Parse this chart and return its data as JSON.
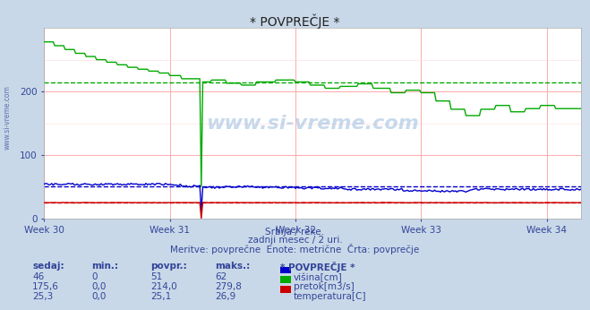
{
  "title": "* POVPREČJE *",
  "bg_color": "#c8d8e8",
  "plot_bg_color": "#ffffff",
  "subtitle_lines": [
    "Srbija / reke.",
    "zadnji mesec / 2 uri.",
    "Meritve: povprečne  Enote: metrične  Črta: povprečje"
  ],
  "xlabel_weeks": [
    "Week 30",
    "Week 31",
    "Week 32",
    "Week 33",
    "Week 34"
  ],
  "ylim": [
    0,
    300
  ],
  "yticks": [
    0,
    100,
    200
  ],
  "n_points": 360,
  "week_positions": [
    0,
    84,
    168,
    252,
    336
  ],
  "avg_green": 214.0,
  "avg_blue": 51,
  "avg_red": 25.1,
  "green_color": "#00aa00",
  "blue_color": "#0000cc",
  "red_color": "#cc0000",
  "watermark_text": "www.si-vreme.com",
  "legend_headers": [
    "sedaj:",
    "min.:",
    "povpr.:",
    "maks.:",
    "* POVPREČJE *"
  ],
  "legend_row1": [
    "46",
    "0",
    "51",
    "62",
    "višina[cm]"
  ],
  "legend_row2": [
    "175,6",
    "0,0",
    "214,0",
    "279,8",
    "pretok[m3/s]"
  ],
  "legend_row3": [
    "25,3",
    "0,0",
    "25,1",
    "26,9",
    "temperatura[C]"
  ],
  "legend_colors": [
    "#0000cc",
    "#00aa00",
    "#cc0000"
  ],
  "left_label": "www.si-vreme.com"
}
